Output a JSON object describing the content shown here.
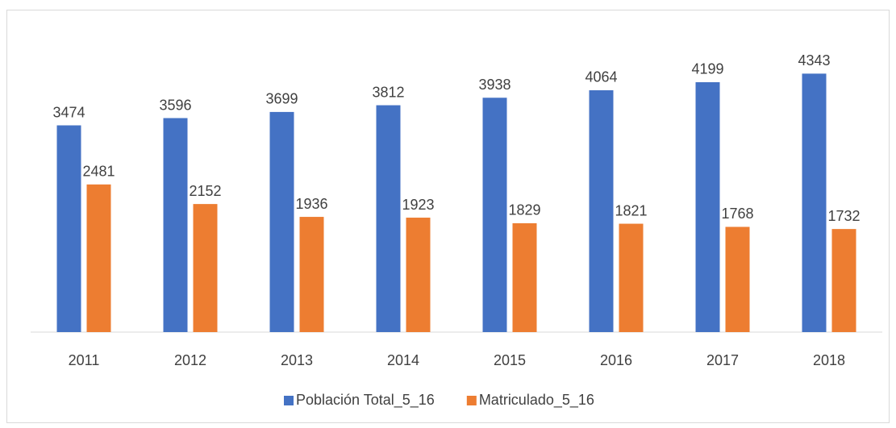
{
  "chart_data": {
    "type": "bar",
    "categories": [
      "2011",
      "2012",
      "2013",
      "2014",
      "2015",
      "2016",
      "2017",
      "2018"
    ],
    "series": [
      {
        "name": "Población Total_5_16",
        "color": "#4472c4",
        "values": [
          3474,
          3596,
          3699,
          3812,
          3938,
          4064,
          4199,
          4343
        ]
      },
      {
        "name": "Matriculado_5_16",
        "color": "#ed7d31",
        "values": [
          2481,
          2152,
          1936,
          1923,
          1829,
          1821,
          1768,
          1732
        ]
      }
    ],
    "ylim": [
      0,
      4700
    ],
    "legend": "bottom"
  }
}
